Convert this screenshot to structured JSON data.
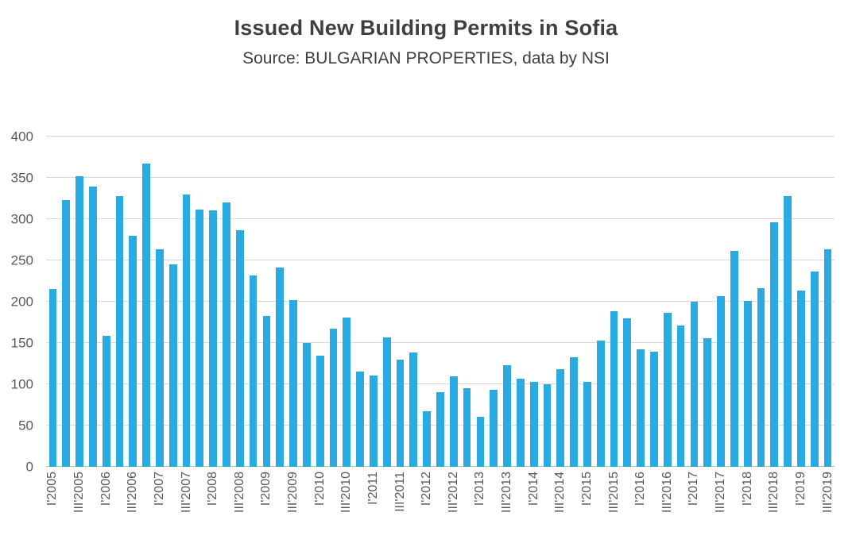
{
  "chart_data": {
    "type": "bar",
    "title": "Issued New Building Permits in Sofia",
    "subtitle": "Source: BULGARIAN PROPERTIES, data by NSI",
    "xlabel": "",
    "ylabel": "",
    "ylim": [
      0,
      400
    ],
    "yticks": [
      0,
      50,
      100,
      150,
      200,
      250,
      300,
      350,
      400
    ],
    "x_tick_every": 2,
    "grid": "horizontal",
    "legend": "none",
    "categories": [
      "I'2005",
      "II'2005",
      "III'2005",
      "IV'2005",
      "I'2006",
      "II'2006",
      "III'2006",
      "IV'2006",
      "I'2007",
      "II'2007",
      "III'2007",
      "IV'2007",
      "I'2008",
      "II'2008",
      "III'2008",
      "IV'2008",
      "I'2009",
      "II'2009",
      "III'2009",
      "IV'2009",
      "I'2010",
      "II'2010",
      "III'2010",
      "IV'2010",
      "I'2011",
      "II'2011",
      "III'2011",
      "IV'2011",
      "I'2012",
      "II'2012",
      "III'2012",
      "IV'2012",
      "I'2013",
      "II'2013",
      "III'2013",
      "IV'2013",
      "I'2014",
      "II'2014",
      "III'2014",
      "IV'2014",
      "I'2015",
      "II'2015",
      "III'2015",
      "IV'2015",
      "I'2016",
      "II'2016",
      "III'2016",
      "IV'2016",
      "I'2017",
      "II'2017",
      "III'2017",
      "IV'2017",
      "I'2018",
      "II'2018",
      "III'2018",
      "IV'2018",
      "I'2019",
      "II'2019",
      "III'2019"
    ],
    "values": [
      215,
      323,
      352,
      339,
      159,
      328,
      280,
      367,
      263,
      245,
      330,
      312,
      311,
      320,
      287,
      232,
      183,
      241,
      202,
      150,
      135,
      167,
      181,
      115,
      111,
      157,
      130,
      138,
      67,
      90,
      110,
      95,
      61,
      93,
      123,
      107,
      103,
      100,
      118,
      133,
      103,
      153,
      188,
      180,
      142,
      139,
      187,
      171,
      200,
      156,
      207,
      262,
      201,
      216,
      296,
      328,
      213,
      237,
      263
    ],
    "colors": {
      "bar": "#29ABE2",
      "title_text": "#3F3F3F",
      "axis_text": "#595959",
      "gridline": "#D9D9D9",
      "axis_line": "#BFBFBF",
      "background": "#FFFFFF"
    }
  }
}
